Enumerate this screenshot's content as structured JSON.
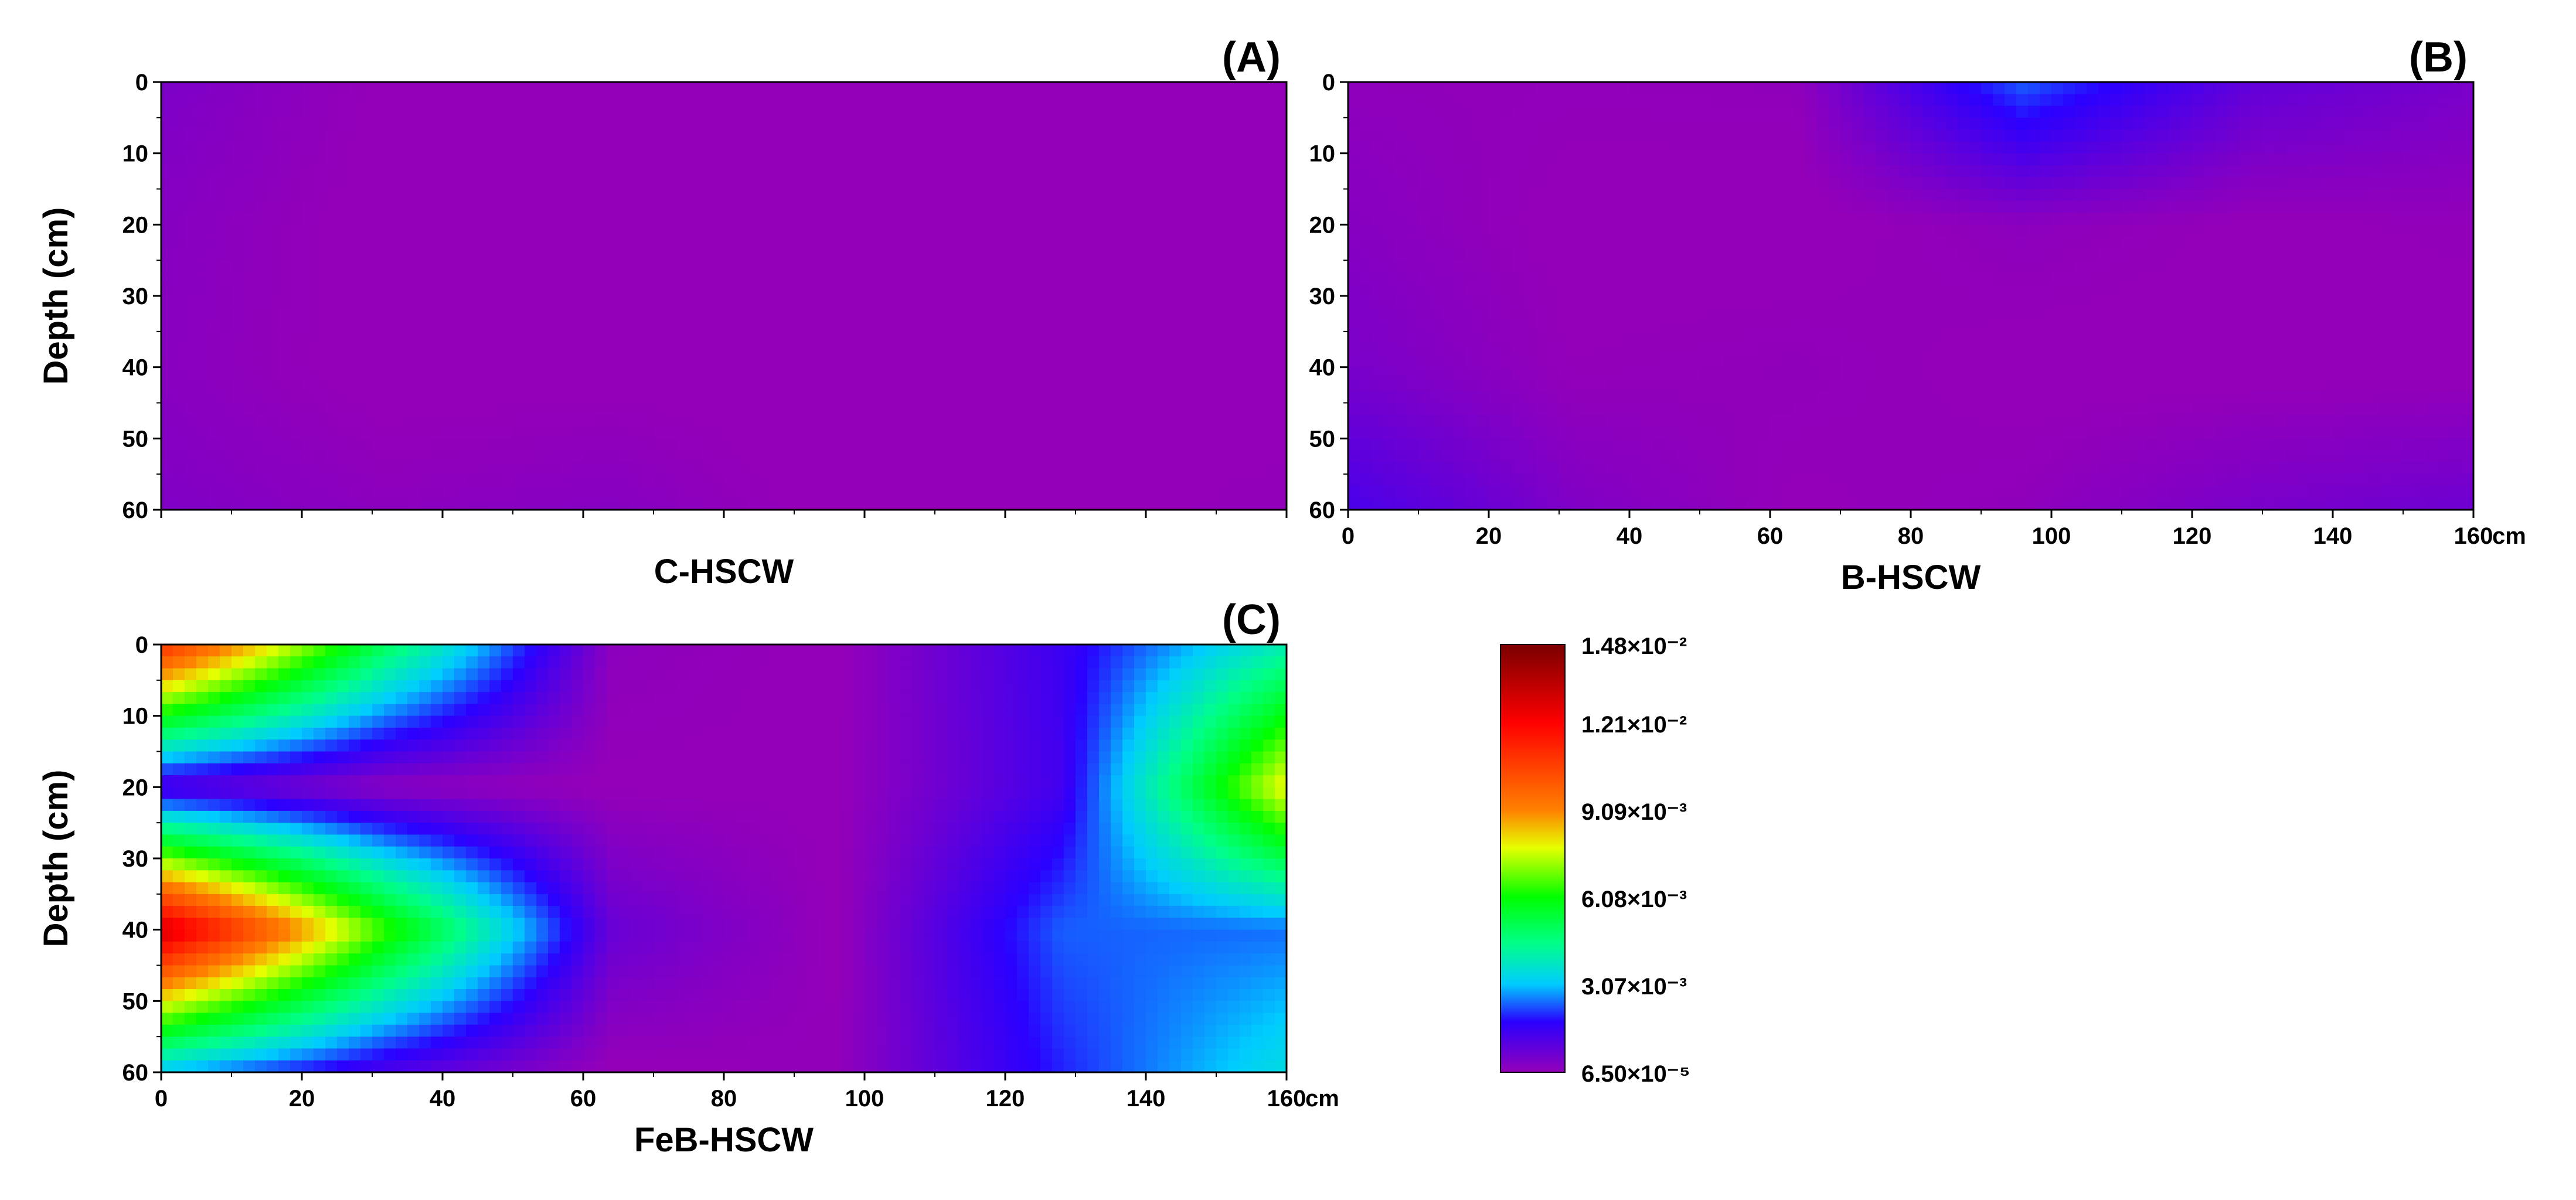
{
  "figure": {
    "unit_label": "cm",
    "panels_order": [
      "A",
      "B",
      "C"
    ]
  },
  "colorbar": {
    "tick_labels": [
      "1.48×10⁻²",
      "1.21×10⁻²",
      "9.09×10⁻³",
      "6.08×10⁻³",
      "3.07×10⁻³",
      "6.50×10⁻⁵"
    ],
    "tick_values": [
      0.0148,
      0.0121,
      0.00909,
      0.00608,
      0.00307,
      6.5e-05
    ],
    "range": [
      6.5e-05,
      0.0148
    ],
    "stops": [
      {
        "value": 6.5e-05,
        "color": "#9400b8"
      },
      {
        "value": 0.0018,
        "color": "#2a00ff"
      },
      {
        "value": 0.0031,
        "color": "#00ccff"
      },
      {
        "value": 0.0045,
        "color": "#00ff88"
      },
      {
        "value": 0.0061,
        "color": "#00ff00"
      },
      {
        "value": 0.0078,
        "color": "#e6ff00"
      },
      {
        "value": 0.0091,
        "color": "#ff8000"
      },
      {
        "value": 0.0121,
        "color": "#ff0000"
      },
      {
        "value": 0.0148,
        "color": "#7a0000"
      }
    ]
  },
  "chart_data": [
    {
      "type": "heatmap",
      "panel_label": "(A)",
      "title": "C-HSCW",
      "ylabel": "Depth (cm)",
      "xlabel": "",
      "xlim": [
        0,
        160
      ],
      "ylim": [
        0,
        60
      ],
      "show_x_tick_labels": false,
      "x": [
        0,
        32,
        64,
        96,
        128,
        160
      ],
      "y": [
        0,
        20,
        40,
        60
      ],
      "z": [
        [
          0.00045,
          5e-05,
          2e-05,
          0.0,
          3e-05,
          5e-05
        ],
        [
          0.0003,
          0.0,
          2e-05,
          0.0,
          1e-05,
          3e-05
        ],
        [
          0.00025,
          0.0,
          2e-05,
          0.0,
          2e-05,
          4e-05
        ],
        [
          0.0004,
          0.0002,
          0.0003,
          1e-05,
          5e-05,
          0.0001
        ]
      ],
      "xticks": [
        0,
        20,
        40,
        60,
        80,
        100,
        120,
        140,
        160
      ],
      "yticks": [
        0,
        10,
        20,
        30,
        40,
        50,
        60
      ]
    },
    {
      "type": "heatmap",
      "panel_label": "(B)",
      "title": "B-HSCW",
      "ylabel": "",
      "xlabel": "",
      "xlim": [
        0,
        160
      ],
      "ylim": [
        0,
        60
      ],
      "show_x_tick_labels": true,
      "show_y_tick_labels": true,
      "x": [
        0,
        32,
        64,
        96,
        128,
        160
      ],
      "y": [
        0,
        20,
        40,
        60
      ],
      "z": [
        [
          0.00015,
          0.00012,
          0.00015,
          0.0024,
          0.0009,
          0.0005
        ],
        [
          0.0003,
          2e-05,
          0.0,
          0.0002,
          5e-05,
          0.0001
        ],
        [
          0.0005,
          8e-05,
          0.00015,
          2e-05,
          0.0,
          2e-05
        ],
        [
          0.0013,
          0.0004,
          5e-05,
          0.00015,
          0.0005,
          0.0007
        ]
      ],
      "xticks": [
        0,
        20,
        40,
        60,
        80,
        100,
        120,
        140,
        160
      ],
      "yticks": [
        0,
        10,
        20,
        30,
        40,
        50,
        60
      ]
    },
    {
      "type": "heatmap",
      "panel_label": "(C)",
      "title": "FeB-HSCW",
      "ylabel": "Depth (cm)",
      "xlabel": "",
      "xlim": [
        0,
        160
      ],
      "ylim": [
        0,
        60
      ],
      "show_x_tick_labels": true,
      "x": [
        0,
        32,
        64,
        96,
        128,
        160
      ],
      "y": [
        0,
        20,
        40,
        60
      ],
      "z": [
        [
          0.011,
          0.005,
          0.0002,
          3e-05,
          0.0015,
          0.004
        ],
        [
          0.0011,
          0.0002,
          5e-05,
          5e-05,
          0.0014,
          0.008
        ],
        [
          0.013,
          0.0065,
          0.0008,
          5e-05,
          0.0024,
          0.0025
        ],
        [
          0.003,
          0.0012,
          1e-05,
          0.0001,
          0.002,
          0.0035
        ]
      ],
      "xticks": [
        0,
        20,
        40,
        60,
        80,
        100,
        120,
        140,
        160
      ],
      "yticks": [
        0,
        10,
        20,
        30,
        40,
        50,
        60
      ]
    }
  ]
}
